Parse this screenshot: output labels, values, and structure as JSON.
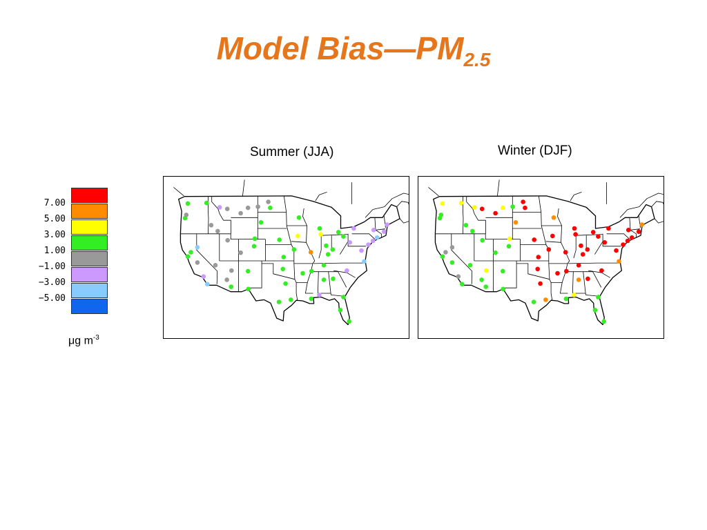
{
  "title": {
    "main": "Model Bias—PM",
    "subscript": "2.5"
  },
  "panels": [
    {
      "id": "summer",
      "label": "Summer (JJA)"
    },
    {
      "id": "winter",
      "label": "Winter (DJF)"
    }
  ],
  "legend": {
    "colors": [
      "#ff0000",
      "#ff8c00",
      "#ffff00",
      "#33ee22",
      "#999999",
      "#cc99ff",
      "#88ccff",
      "#1166ee"
    ],
    "ticks": [
      "7.00",
      "5.00",
      "3.00",
      "1.00",
      "−1.00",
      "−3.00",
      "−5.00"
    ],
    "units_base": "μg m",
    "units_exp": "-3"
  },
  "bin_colors": {
    "gt7": "#ff0000",
    "5to7": "#ff8c00",
    "3to5": "#ffff00",
    "1to3": "#33ee22",
    "m1to1": "#999999",
    "m3tom1": "#cc99ff",
    "m5tom3": "#88ccff",
    "ltm5": "#1166ee"
  },
  "chart_data": [
    {
      "type": "scatter",
      "panel": "Summer (JJA)",
      "points": [
        {
          "lon": -122.3,
          "lat": 47.6,
          "bin": "1to3"
        },
        {
          "lon": -123.0,
          "lat": 44.9,
          "bin": "1to3"
        },
        {
          "lon": -122.7,
          "lat": 45.5,
          "bin": "m1to1"
        },
        {
          "lon": -117.4,
          "lat": 47.7,
          "bin": "1to3"
        },
        {
          "lon": -114.0,
          "lat": 46.9,
          "bin": "m3tom1"
        },
        {
          "lon": -112.0,
          "lat": 46.6,
          "bin": "m1to1"
        },
        {
          "lon": -108.5,
          "lat": 45.8,
          "bin": "m1to1"
        },
        {
          "lon": -106.6,
          "lat": 46.8,
          "bin": "m1to1"
        },
        {
          "lon": -104.0,
          "lat": 47.0,
          "bin": "m1to1"
        },
        {
          "lon": -101.3,
          "lat": 47.9,
          "bin": "m1to1"
        },
        {
          "lon": -116.2,
          "lat": 43.6,
          "bin": "m1to1"
        },
        {
          "lon": -111.9,
          "lat": 40.8,
          "bin": "m1to1"
        },
        {
          "lon": -114.5,
          "lat": 42.5,
          "bin": "m1to1"
        },
        {
          "lon": -119.8,
          "lat": 39.5,
          "bin": "m5tom3"
        },
        {
          "lon": -121.5,
          "lat": 38.6,
          "bin": "1to3"
        },
        {
          "lon": -122.3,
          "lat": 37.8,
          "bin": "1to3"
        },
        {
          "lon": -119.8,
          "lat": 36.7,
          "bin": "m1to1"
        },
        {
          "lon": -118.2,
          "lat": 34.1,
          "bin": "m3tom1"
        },
        {
          "lon": -117.2,
          "lat": 32.7,
          "bin": "m5tom3"
        },
        {
          "lon": -115.1,
          "lat": 36.2,
          "bin": "m1to1"
        },
        {
          "lon": -112.1,
          "lat": 33.5,
          "bin": "m1to1"
        },
        {
          "lon": -111.0,
          "lat": 32.2,
          "bin": "1to3"
        },
        {
          "lon": -110.9,
          "lat": 35.2,
          "bin": "m1to1"
        },
        {
          "lon": -106.6,
          "lat": 35.1,
          "bin": "1to3"
        },
        {
          "lon": -105.0,
          "lat": 39.7,
          "bin": "1to3"
        },
        {
          "lon": -104.8,
          "lat": 41.1,
          "bin": "1to3"
        },
        {
          "lon": -108.5,
          "lat": 38.5,
          "bin": "m1to1"
        },
        {
          "lon": -106.5,
          "lat": 31.8,
          "bin": "1to3"
        },
        {
          "lon": -103.2,
          "lat": 44.1,
          "bin": "1to3"
        },
        {
          "lon": -100.8,
          "lat": 46.8,
          "bin": "1to3"
        },
        {
          "lon": -98.4,
          "lat": 40.9,
          "bin": "1to3"
        },
        {
          "lon": -97.3,
          "lat": 37.7,
          "bin": "1to3"
        },
        {
          "lon": -97.5,
          "lat": 35.5,
          "bin": "1to3"
        },
        {
          "lon": -96.8,
          "lat": 32.8,
          "bin": "1to3"
        },
        {
          "lon": -95.4,
          "lat": 29.8,
          "bin": "1to3"
        },
        {
          "lon": -98.5,
          "lat": 29.4,
          "bin": "1to3"
        },
        {
          "lon": -93.3,
          "lat": 45.0,
          "bin": "1to3"
        },
        {
          "lon": -93.6,
          "lat": 41.6,
          "bin": "3to5"
        },
        {
          "lon": -94.6,
          "lat": 39.1,
          "bin": "1to3"
        },
        {
          "lon": -90.2,
          "lat": 38.6,
          "bin": "5to7"
        },
        {
          "lon": -92.3,
          "lat": 34.7,
          "bin": "1to3"
        },
        {
          "lon": -90.0,
          "lat": 35.1,
          "bin": "1to3"
        },
        {
          "lon": -90.1,
          "lat": 30.0,
          "bin": "1to3"
        },
        {
          "lon": -87.9,
          "lat": 43.0,
          "bin": "1to3"
        },
        {
          "lon": -87.6,
          "lat": 41.9,
          "bin": "3to5"
        },
        {
          "lon": -86.2,
          "lat": 39.8,
          "bin": "1to3"
        },
        {
          "lon": -85.7,
          "lat": 38.2,
          "bin": "1to3"
        },
        {
          "lon": -83.0,
          "lat": 42.3,
          "bin": "1to3"
        },
        {
          "lon": -81.7,
          "lat": 41.5,
          "bin": "1to3"
        },
        {
          "lon": -84.5,
          "lat": 39.1,
          "bin": "1to3"
        },
        {
          "lon": -86.8,
          "lat": 36.2,
          "bin": "1to3"
        },
        {
          "lon": -84.4,
          "lat": 33.7,
          "bin": "1to3"
        },
        {
          "lon": -86.8,
          "lat": 33.5,
          "bin": "1to3"
        },
        {
          "lon": -80.8,
          "lat": 35.2,
          "bin": "m3tom1"
        },
        {
          "lon": -80.0,
          "lat": 40.4,
          "bin": "m3tom1"
        },
        {
          "lon": -77.0,
          "lat": 38.9,
          "bin": "m3tom1"
        },
        {
          "lon": -75.2,
          "lat": 40.0,
          "bin": "m3tom1"
        },
        {
          "lon": -74.0,
          "lat": 40.7,
          "bin": "m3tom1"
        },
        {
          "lon": -73.8,
          "lat": 42.7,
          "bin": "m3tom1"
        },
        {
          "lon": -71.1,
          "lat": 42.4,
          "bin": "m3tom1"
        },
        {
          "lon": -70.3,
          "lat": 43.7,
          "bin": "m3tom1"
        },
        {
          "lon": -72.9,
          "lat": 41.3,
          "bin": "m5tom3"
        },
        {
          "lon": -76.3,
          "lat": 36.9,
          "bin": "m5tom3"
        },
        {
          "lon": -81.7,
          "lat": 30.3,
          "bin": "1to3"
        },
        {
          "lon": -82.5,
          "lat": 27.9,
          "bin": "1to3"
        },
        {
          "lon": -80.2,
          "lat": 25.8,
          "bin": "1to3"
        },
        {
          "lon": -88.0,
          "lat": 30.7,
          "bin": "m3tom1"
        },
        {
          "lon": -79.0,
          "lat": 43.0,
          "bin": "m3tom1"
        }
      ]
    },
    {
      "type": "scatter",
      "panel": "Winter (DJF)",
      "points": [
        {
          "lon": -122.3,
          "lat": 47.6,
          "bin": "3to5"
        },
        {
          "lon": -123.0,
          "lat": 44.9,
          "bin": "1to3"
        },
        {
          "lon": -122.7,
          "lat": 45.5,
          "bin": "1to3"
        },
        {
          "lon": -117.4,
          "lat": 47.7,
          "bin": "3to5"
        },
        {
          "lon": -114.0,
          "lat": 46.9,
          "bin": "3to5"
        },
        {
          "lon": -112.0,
          "lat": 46.6,
          "bin": "gt7"
        },
        {
          "lon": -108.5,
          "lat": 45.8,
          "bin": "gt7"
        },
        {
          "lon": -106.6,
          "lat": 46.8,
          "bin": "3to5"
        },
        {
          "lon": -104.0,
          "lat": 47.0,
          "bin": "1to3"
        },
        {
          "lon": -101.3,
          "lat": 47.9,
          "bin": "gt7"
        },
        {
          "lon": -116.2,
          "lat": 43.6,
          "bin": "1to3"
        },
        {
          "lon": -111.9,
          "lat": 40.8,
          "bin": "1to3"
        },
        {
          "lon": -114.5,
          "lat": 42.5,
          "bin": "1to3"
        },
        {
          "lon": -119.8,
          "lat": 39.5,
          "bin": "m1to1"
        },
        {
          "lon": -121.5,
          "lat": 38.6,
          "bin": "m1to1"
        },
        {
          "lon": -122.3,
          "lat": 37.8,
          "bin": "1to3"
        },
        {
          "lon": -119.8,
          "lat": 36.7,
          "bin": "1to3"
        },
        {
          "lon": -118.2,
          "lat": 34.1,
          "bin": "m1to1"
        },
        {
          "lon": -117.2,
          "lat": 32.7,
          "bin": "1to3"
        },
        {
          "lon": -115.1,
          "lat": 36.2,
          "bin": "1to3"
        },
        {
          "lon": -112.1,
          "lat": 33.5,
          "bin": "1to3"
        },
        {
          "lon": -111.0,
          "lat": 32.2,
          "bin": "1to3"
        },
        {
          "lon": -110.9,
          "lat": 35.2,
          "bin": "3to5"
        },
        {
          "lon": -106.6,
          "lat": 35.1,
          "bin": "1to3"
        },
        {
          "lon": -105.0,
          "lat": 39.7,
          "bin": "1to3"
        },
        {
          "lon": -104.8,
          "lat": 41.1,
          "bin": "3to5"
        },
        {
          "lon": -108.5,
          "lat": 38.5,
          "bin": "1to3"
        },
        {
          "lon": -106.5,
          "lat": 31.8,
          "bin": "1to3"
        },
        {
          "lon": -103.2,
          "lat": 44.1,
          "bin": "5to7"
        },
        {
          "lon": -100.8,
          "lat": 46.8,
          "bin": "gt7"
        },
        {
          "lon": -98.4,
          "lat": 40.9,
          "bin": "gt7"
        },
        {
          "lon": -97.3,
          "lat": 37.7,
          "bin": "gt7"
        },
        {
          "lon": -97.5,
          "lat": 35.5,
          "bin": "gt7"
        },
        {
          "lon": -96.8,
          "lat": 32.8,
          "bin": "gt7"
        },
        {
          "lon": -95.4,
          "lat": 29.8,
          "bin": "5to7"
        },
        {
          "lon": -98.5,
          "lat": 29.4,
          "bin": "1to3"
        },
        {
          "lon": -93.3,
          "lat": 45.0,
          "bin": "5to7"
        },
        {
          "lon": -93.6,
          "lat": 41.6,
          "bin": "gt7"
        },
        {
          "lon": -94.6,
          "lat": 39.1,
          "bin": "gt7"
        },
        {
          "lon": -90.2,
          "lat": 38.6,
          "bin": "gt7"
        },
        {
          "lon": -92.3,
          "lat": 34.7,
          "bin": "gt7"
        },
        {
          "lon": -90.0,
          "lat": 35.1,
          "bin": "gt7"
        },
        {
          "lon": -90.1,
          "lat": 30.0,
          "bin": "1to3"
        },
        {
          "lon": -87.9,
          "lat": 43.0,
          "bin": "gt7"
        },
        {
          "lon": -87.6,
          "lat": 41.9,
          "bin": "gt7"
        },
        {
          "lon": -86.2,
          "lat": 39.8,
          "bin": "gt7"
        },
        {
          "lon": -85.7,
          "lat": 38.2,
          "bin": "gt7"
        },
        {
          "lon": -83.0,
          "lat": 42.3,
          "bin": "gt7"
        },
        {
          "lon": -81.7,
          "lat": 41.5,
          "bin": "gt7"
        },
        {
          "lon": -84.5,
          "lat": 39.1,
          "bin": "gt7"
        },
        {
          "lon": -86.8,
          "lat": 36.2,
          "bin": "gt7"
        },
        {
          "lon": -84.4,
          "lat": 33.7,
          "bin": "gt7"
        },
        {
          "lon": -86.8,
          "lat": 33.5,
          "bin": "5to7"
        },
        {
          "lon": -80.8,
          "lat": 35.2,
          "bin": "gt7"
        },
        {
          "lon": -80.0,
          "lat": 40.4,
          "bin": "gt7"
        },
        {
          "lon": -77.0,
          "lat": 38.9,
          "bin": "gt7"
        },
        {
          "lon": -75.2,
          "lat": 40.0,
          "bin": "gt7"
        },
        {
          "lon": -74.0,
          "lat": 40.7,
          "bin": "gt7"
        },
        {
          "lon": -73.8,
          "lat": 42.7,
          "bin": "gt7"
        },
        {
          "lon": -71.1,
          "lat": 42.4,
          "bin": "gt7"
        },
        {
          "lon": -70.3,
          "lat": 43.7,
          "bin": "5to7"
        },
        {
          "lon": -72.9,
          "lat": 41.3,
          "bin": "gt7"
        },
        {
          "lon": -76.3,
          "lat": 36.9,
          "bin": "5to7"
        },
        {
          "lon": -81.7,
          "lat": 30.3,
          "bin": "1to3"
        },
        {
          "lon": -82.5,
          "lat": 27.9,
          "bin": "1to3"
        },
        {
          "lon": -80.2,
          "lat": 25.8,
          "bin": "1to3"
        },
        {
          "lon": -88.0,
          "lat": 30.7,
          "bin": "3to5"
        },
        {
          "lon": -79.0,
          "lat": 43.0,
          "bin": "gt7"
        }
      ]
    }
  ]
}
